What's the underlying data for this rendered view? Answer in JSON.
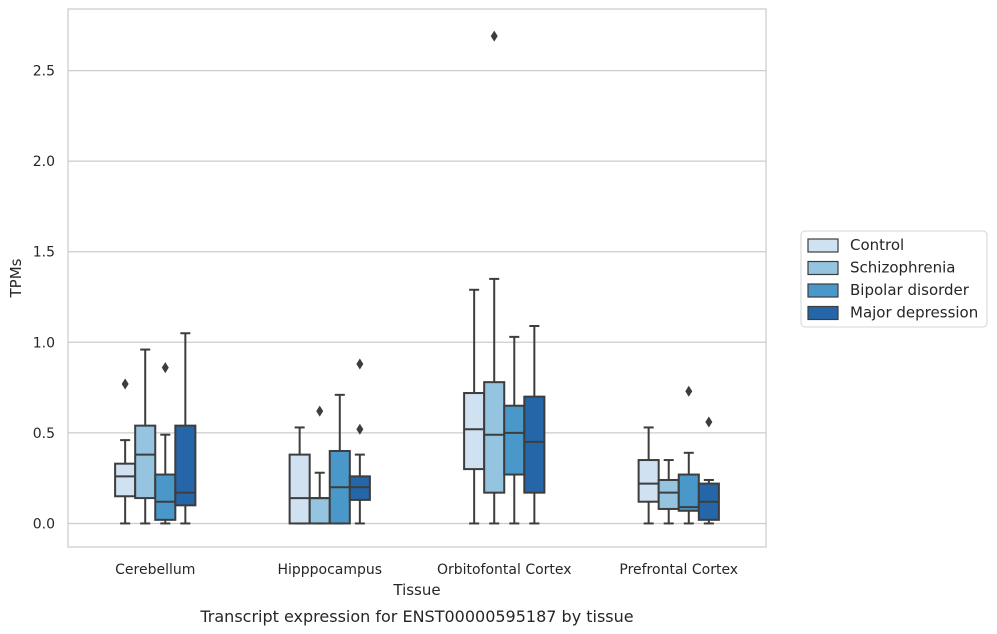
{
  "chart_data": {
    "type": "boxplot",
    "xlabel": "Tissue",
    "ylabel": "TPMs",
    "caption": "Transcript expression for ENST00000595187 by tissue",
    "ylim": [
      -0.13,
      2.84
    ],
    "yticks": [
      0.0,
      0.5,
      1.0,
      1.5,
      2.0,
      2.5
    ],
    "ytick_labels": [
      "0.0",
      "0.5",
      "1.0",
      "1.5",
      "2.0",
      "2.5"
    ],
    "grid": "horizontal",
    "legend_position": "right",
    "categories": [
      "Cerebellum",
      "Hipppocampus",
      "Orbitofontal Cortex",
      "Prefrontal Cortex"
    ],
    "series": [
      {
        "name": "Control",
        "color": "#d0e1f2",
        "boxes": [
          {
            "whisker_low": 0.0,
            "q1": 0.15,
            "median": 0.26,
            "q3": 0.33,
            "whisker_high": 0.46,
            "outliers": [
              0.77
            ]
          },
          {
            "whisker_low": 0.0,
            "q1": 0.0,
            "median": 0.14,
            "q3": 0.38,
            "whisker_high": 0.53,
            "outliers": []
          },
          {
            "whisker_low": 0.0,
            "q1": 0.3,
            "median": 0.52,
            "q3": 0.72,
            "whisker_high": 1.29,
            "outliers": []
          },
          {
            "whisker_low": 0.0,
            "q1": 0.12,
            "median": 0.22,
            "q3": 0.35,
            "whisker_high": 0.53,
            "outliers": []
          }
        ]
      },
      {
        "name": "Schizophrenia",
        "color": "#94c4df",
        "boxes": [
          {
            "whisker_low": 0.0,
            "q1": 0.14,
            "median": 0.38,
            "q3": 0.54,
            "whisker_high": 0.96,
            "outliers": []
          },
          {
            "whisker_low": 0.0,
            "q1": 0.0,
            "median": 0.14,
            "q3": 0.14,
            "whisker_high": 0.28,
            "outliers": [
              0.62
            ]
          },
          {
            "whisker_low": 0.0,
            "q1": 0.17,
            "median": 0.49,
            "q3": 0.78,
            "whisker_high": 1.35,
            "outliers": [
              2.69
            ]
          },
          {
            "whisker_low": 0.0,
            "q1": 0.08,
            "median": 0.17,
            "q3": 0.24,
            "whisker_high": 0.35,
            "outliers": []
          }
        ]
      },
      {
        "name": "Bipolar disorder",
        "color": "#4a98c9",
        "boxes": [
          {
            "whisker_low": 0.0,
            "q1": 0.02,
            "median": 0.12,
            "q3": 0.27,
            "whisker_high": 0.49,
            "outliers": [
              0.86
            ]
          },
          {
            "whisker_low": 0.0,
            "q1": 0.0,
            "median": 0.2,
            "q3": 0.4,
            "whisker_high": 0.71,
            "outliers": []
          },
          {
            "whisker_low": 0.0,
            "q1": 0.27,
            "median": 0.5,
            "q3": 0.65,
            "whisker_high": 1.03,
            "outliers": []
          },
          {
            "whisker_low": 0.0,
            "q1": 0.07,
            "median": 0.09,
            "q3": 0.27,
            "whisker_high": 0.39,
            "outliers": [
              0.73
            ]
          }
        ]
      },
      {
        "name": "Major depression",
        "color": "#2566a8",
        "boxes": [
          {
            "whisker_low": 0.0,
            "q1": 0.1,
            "median": 0.17,
            "q3": 0.54,
            "whisker_high": 1.05,
            "outliers": []
          },
          {
            "whisker_low": 0.0,
            "q1": 0.13,
            "median": 0.2,
            "q3": 0.26,
            "whisker_high": 0.38,
            "outliers": [
              0.52,
              0.88
            ]
          },
          {
            "whisker_low": 0.0,
            "q1": 0.17,
            "median": 0.45,
            "q3": 0.7,
            "whisker_high": 1.09,
            "outliers": []
          },
          {
            "whisker_low": 0.0,
            "q1": 0.02,
            "median": 0.12,
            "q3": 0.22,
            "whisker_high": 0.24,
            "outliers": [
              0.56
            ]
          }
        ]
      }
    ]
  }
}
